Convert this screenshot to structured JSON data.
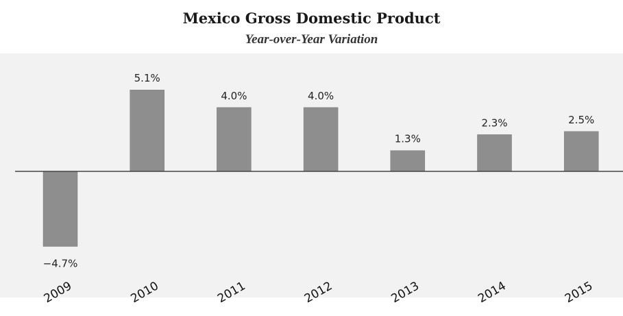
{
  "chart_data": {
    "type": "bar",
    "title": "Mexico Gross Domestic Product",
    "subtitle": "Year-over-Year Variation",
    "categories": [
      "2009",
      "2010",
      "2011",
      "2012",
      "2013",
      "2014",
      "2015"
    ],
    "values": [
      -4.7,
      5.1,
      4.0,
      4.0,
      1.3,
      2.3,
      2.5
    ],
    "data_labels": [
      "−4.7%",
      "5.1%",
      "4.0%",
      "4.0%",
      "1.3%",
      "2.3%",
      "2.5%"
    ],
    "xlabel": "",
    "ylabel": "",
    "ylim": [
      -5.5,
      7.5
    ],
    "grid": false,
    "colors": {
      "bar": "#8e8e8e",
      "bar_border": "#7a7a7a",
      "plot_background": "#f2f2f2",
      "zero_line": "#444444"
    }
  }
}
